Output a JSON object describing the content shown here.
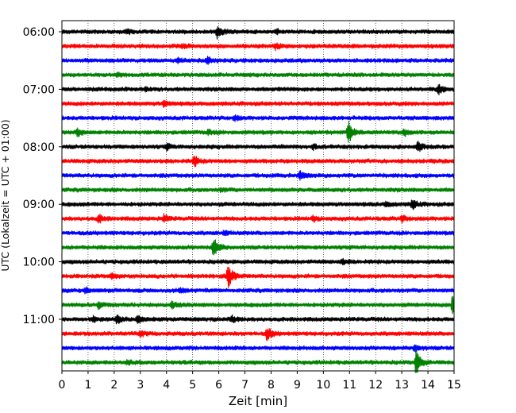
{
  "chart_data": {
    "type": "line",
    "title": "",
    "xlabel": "Zeit  [min]",
    "ylabel": "UTC (Lokalzeit = UTC + 01:00)",
    "xlim": [
      0,
      15
    ],
    "x_ticks": [
      "0",
      "1",
      "2",
      "3",
      "4",
      "5",
      "6",
      "7",
      "8",
      "9",
      "10",
      "11",
      "12",
      "13",
      "14",
      "15"
    ],
    "y_ticks": [
      "06:00",
      "07:00",
      "08:00",
      "09:00",
      "10:00",
      "11:00"
    ],
    "grid": "vertical dotted",
    "trace_colors": [
      "#000000",
      "#ff0000",
      "#0000ff",
      "#008000"
    ],
    "traces": [
      {
        "start": "06:00",
        "events": [
          {
            "t": 5.95,
            "amp": 0.55
          },
          {
            "t": 8.2,
            "amp": 0.2
          },
          {
            "t": 2.5,
            "amp": 0.15
          }
        ]
      },
      {
        "start": "06:15",
        "events": [
          {
            "t": 8.15,
            "amp": 0.25
          },
          {
            "t": 4.6,
            "amp": 0.15
          }
        ]
      },
      {
        "start": "06:30",
        "events": [
          {
            "t": 5.55,
            "amp": 0.3
          },
          {
            "t": 4.45,
            "amp": 0.15
          }
        ]
      },
      {
        "start": "06:45",
        "events": [
          {
            "t": 2.1,
            "amp": 0.15
          }
        ]
      },
      {
        "start": "07:00",
        "events": [
          {
            "t": 14.4,
            "amp": 0.45
          },
          {
            "t": 3.2,
            "amp": 0.15
          }
        ]
      },
      {
        "start": "07:15",
        "events": [
          {
            "t": 3.9,
            "amp": 0.25
          }
        ]
      },
      {
        "start": "07:30",
        "events": [
          {
            "t": 6.6,
            "amp": 0.2
          }
        ]
      },
      {
        "start": "07:45",
        "events": [
          {
            "t": 10.95,
            "amp": 1.0
          },
          {
            "t": 0.6,
            "amp": 0.35
          },
          {
            "t": 13.1,
            "amp": 0.3
          },
          {
            "t": 5.6,
            "amp": 0.2
          }
        ]
      },
      {
        "start": "08:00",
        "events": [
          {
            "t": 13.6,
            "amp": 0.45
          },
          {
            "t": 4.0,
            "amp": 0.25
          },
          {
            "t": 9.6,
            "amp": 0.2
          }
        ]
      },
      {
        "start": "08:15",
        "events": [
          {
            "t": 5.05,
            "amp": 0.45
          }
        ]
      },
      {
        "start": "08:30",
        "events": [
          {
            "t": 9.1,
            "amp": 0.45
          }
        ]
      },
      {
        "start": "08:45",
        "events": [
          {
            "t": 6.1,
            "amp": 0.15
          }
        ]
      },
      {
        "start": "09:00",
        "events": [
          {
            "t": 13.4,
            "amp": 0.45
          },
          {
            "t": 12.4,
            "amp": 0.2
          }
        ]
      },
      {
        "start": "09:15",
        "events": [
          {
            "t": 1.4,
            "amp": 0.35
          },
          {
            "t": 3.9,
            "amp": 0.3
          },
          {
            "t": 9.6,
            "amp": 0.2
          },
          {
            "t": 13.0,
            "amp": 0.25
          }
        ]
      },
      {
        "start": "09:30",
        "events": [
          {
            "t": 6.2,
            "amp": 0.15
          }
        ]
      },
      {
        "start": "09:45",
        "events": [
          {
            "t": 5.8,
            "amp": 0.95
          }
        ]
      },
      {
        "start": "10:00",
        "events": [
          {
            "t": 10.7,
            "amp": 0.2
          }
        ]
      },
      {
        "start": "10:15",
        "events": [
          {
            "t": 6.35,
            "amp": 1.05
          },
          {
            "t": 1.9,
            "amp": 0.2
          }
        ]
      },
      {
        "start": "10:30",
        "events": [
          {
            "t": 0.9,
            "amp": 0.25
          },
          {
            "t": 4.5,
            "amp": 0.2
          }
        ]
      },
      {
        "start": "10:45",
        "events": [
          {
            "t": 14.95,
            "amp": 1.1
          },
          {
            "t": 1.4,
            "amp": 0.3
          },
          {
            "t": 4.2,
            "amp": 0.3
          }
        ]
      },
      {
        "start": "11:00",
        "events": [
          {
            "t": 2.1,
            "amp": 0.4
          },
          {
            "t": 2.9,
            "amp": 0.35
          },
          {
            "t": 6.5,
            "amp": 0.25
          },
          {
            "t": 1.2,
            "amp": 0.2
          }
        ]
      },
      {
        "start": "11:15",
        "events": [
          {
            "t": 7.85,
            "amp": 0.6
          },
          {
            "t": 3.0,
            "amp": 0.25
          }
        ]
      },
      {
        "start": "11:30",
        "events": [
          {
            "t": 13.5,
            "amp": 0.3
          }
        ]
      },
      {
        "start": "11:45",
        "events": [
          {
            "t": 13.55,
            "amp": 1.2
          },
          {
            "t": 2.5,
            "amp": 0.15
          }
        ]
      }
    ]
  }
}
